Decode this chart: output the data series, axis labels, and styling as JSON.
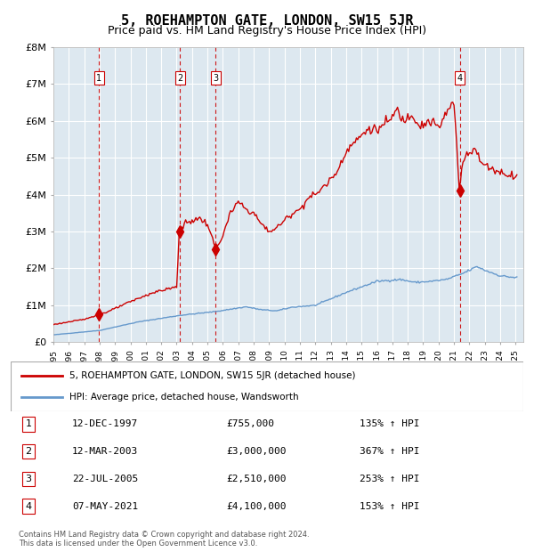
{
  "title": "5, ROEHAMPTON GATE, LONDON, SW15 5JR",
  "subtitle": "Price paid vs. HM Land Registry's House Price Index (HPI)",
  "footer": "Contains HM Land Registry data © Crown copyright and database right 2024.\nThis data is licensed under the Open Government Licence v3.0.",
  "legend_line1": "5, ROEHAMPTON GATE, LONDON, SW15 5JR (detached house)",
  "legend_line2": "HPI: Average price, detached house, Wandsworth",
  "transactions": [
    {
      "num": 1,
      "date": "1997-12-12",
      "price": 755000,
      "pct": "135%",
      "label": "12-DEC-1997",
      "price_label": "£755,000"
    },
    {
      "num": 2,
      "date": "2003-03-12",
      "price": 3000000,
      "pct": "367%",
      "label": "12-MAR-2003",
      "price_label": "£3,000,000"
    },
    {
      "num": 3,
      "date": "2005-07-22",
      "price": 2510000,
      "pct": "253%",
      "label": "22-JUL-2005",
      "price_label": "£2,510,000"
    },
    {
      "num": 4,
      "date": "2021-05-07",
      "price": 4100000,
      "pct": "153%",
      "label": "07-MAY-2021",
      "price_label": "£4,100,000"
    }
  ],
  "hpi_color": "#6699cc",
  "price_color": "#cc0000",
  "bg_color": "#dde8f0",
  "plot_bg": "#dde8f0",
  "grid_color": "#ffffff",
  "vline_color": "#cc0000",
  "ylim": [
    0,
    8000000
  ],
  "yticks": [
    0,
    1000000,
    2000000,
    3000000,
    4000000,
    5000000,
    6000000,
    7000000,
    8000000
  ],
  "ytick_labels": [
    "£0",
    "£1M",
    "£2M",
    "£3M",
    "£4M",
    "£5M",
    "£6M",
    "£7M",
    "£8M"
  ],
  "xstart": 1995.0,
  "xend": 2025.5
}
